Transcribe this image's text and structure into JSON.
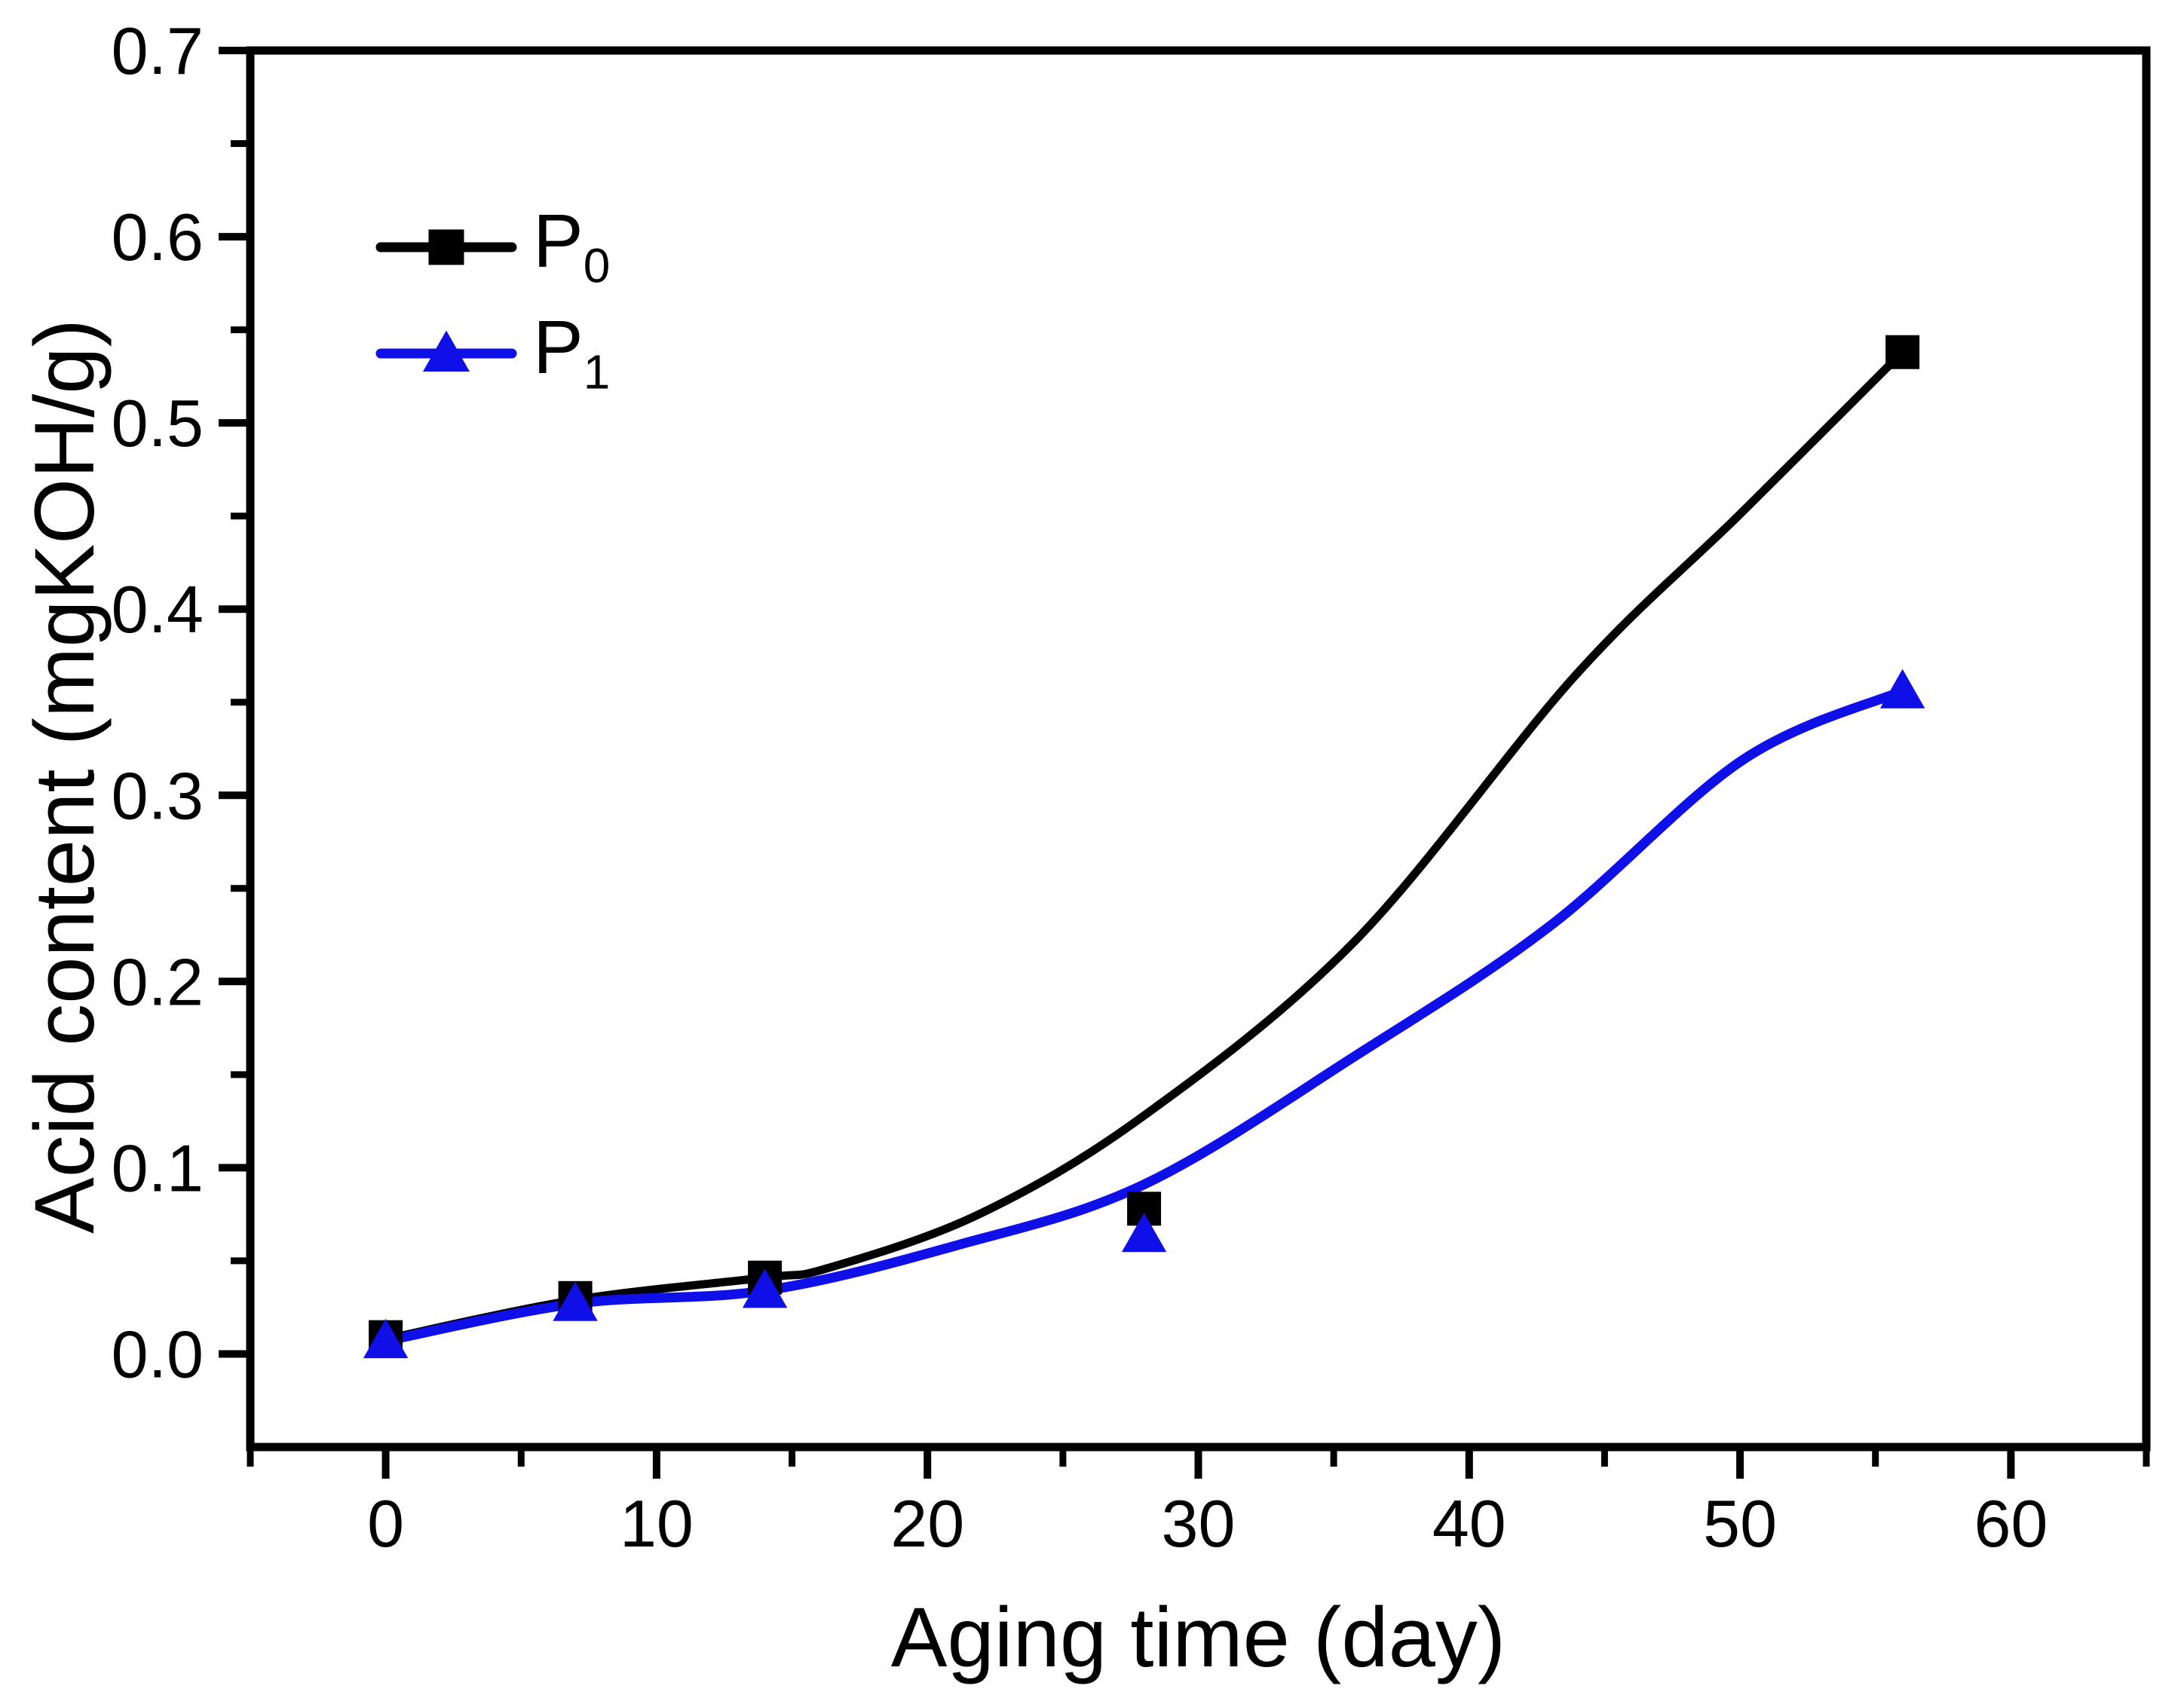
{
  "figure": {
    "background": "#ffffff",
    "text_color": "#000000"
  },
  "chart_data": {
    "type": "line",
    "title": "",
    "xlabel": "Aging time (day)",
    "ylabel": "Acid content (mgKOH/g)",
    "xlim": [
      -5,
      65
    ],
    "ylim": [
      -0.05,
      0.7
    ],
    "grid": false,
    "legend_position": "upper-left-inside",
    "x_major_ticks": [
      0,
      10,
      20,
      30,
      40,
      50,
      60
    ],
    "x_tick_labels": [
      "0",
      "10",
      "20",
      "30",
      "40",
      "50",
      "60"
    ],
    "x_minor_ticks": [
      -5,
      5,
      15,
      25,
      35,
      45,
      55,
      65
    ],
    "y_major_ticks": [
      0.0,
      0.1,
      0.2,
      0.3,
      0.4,
      0.5,
      0.6,
      0.7
    ],
    "y_tick_labels": [
      "0.0",
      "0.1",
      "0.2",
      "0.3",
      "0.4",
      "0.5",
      "0.6",
      "0.7"
    ],
    "y_minor_ticks": [
      0.05,
      0.15,
      0.25,
      0.35,
      0.45,
      0.55,
      0.65
    ],
    "series": [
      {
        "name": "P",
        "subscript": "0",
        "color": "#000000",
        "marker": "square",
        "points": [
          [
            0,
            0.009
          ],
          [
            7,
            0.03
          ],
          [
            14,
            0.041
          ],
          [
            28,
            0.078
          ],
          [
            56,
            0.538
          ]
        ],
        "smooth_line_trace": [
          [
            0,
            0.008
          ],
          [
            7,
            0.029
          ],
          [
            14,
            0.041
          ],
          [
            16.3,
            0.046
          ],
          [
            21.9,
            0.075
          ],
          [
            28,
            0.128
          ],
          [
            35.8,
            0.222
          ],
          [
            43.9,
            0.364
          ],
          [
            50,
            0.451
          ],
          [
            56,
            0.538
          ]
        ]
      },
      {
        "name": "P",
        "subscript": "1",
        "color": "#0f0fe8",
        "marker": "triangle",
        "points": [
          [
            0,
            0.007
          ],
          [
            7,
            0.027
          ],
          [
            14,
            0.034
          ],
          [
            28,
            0.064
          ],
          [
            56,
            0.356
          ]
        ],
        "smooth_line_trace": [
          [
            0,
            0.007
          ],
          [
            7,
            0.027
          ],
          [
            14,
            0.034
          ],
          [
            21,
            0.058
          ],
          [
            28,
            0.091
          ],
          [
            35.9,
            0.161
          ],
          [
            43,
            0.23
          ],
          [
            50.1,
            0.319
          ],
          [
            56,
            0.356
          ]
        ]
      }
    ]
  }
}
